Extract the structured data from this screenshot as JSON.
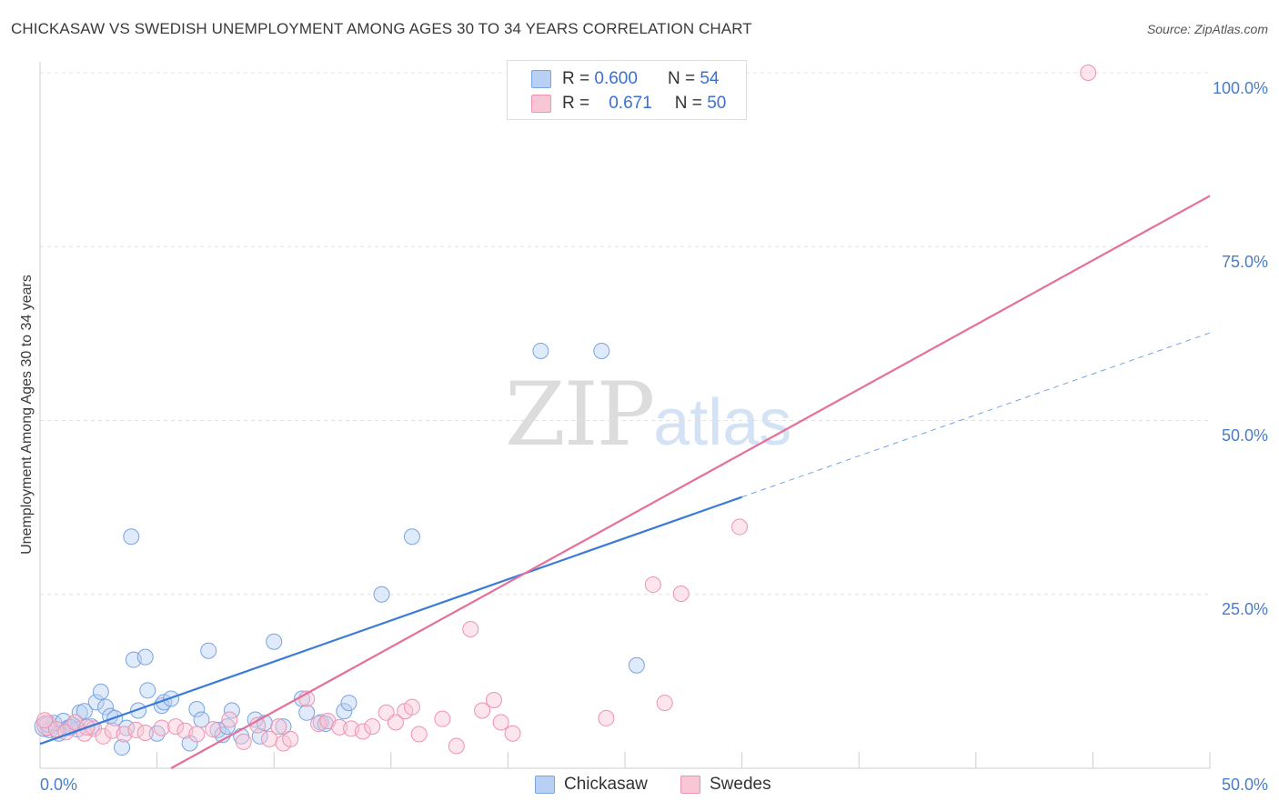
{
  "title": "CHICKASAW VS SWEDISH UNEMPLOYMENT AMONG AGES 30 TO 34 YEARS CORRELATION CHART",
  "source": "Source: ZipAtlas.com",
  "watermark": {
    "zip": "ZIP",
    "atlas": "atlas"
  },
  "legend_top": {
    "r_label": "R =",
    "n_label": "N =",
    "rows": [
      {
        "r": "0.600",
        "n": "54"
      },
      {
        "r": "0.671",
        "n": "50"
      }
    ]
  },
  "chart_data": {
    "type": "scatter",
    "title": "CHICKASAW VS SWEDISH UNEMPLOYMENT AMONG AGES 30 TO 34 YEARS CORRELATION CHART",
    "xlabel": "",
    "ylabel": "Unemployment Among Ages 30 to 34 years",
    "xlim": [
      0,
      50
    ],
    "ylim": [
      0,
      100
    ],
    "x_tick_labels": [
      "0.0%",
      "50.0%"
    ],
    "y_tick_labels": [
      "100.0%",
      "75.0%",
      "50.0%",
      "25.0%"
    ],
    "colors": {
      "Chickasaw": "#3b7bd8",
      "Swedes": "#e56f99",
      "blue_fill": "#b8d0f4",
      "pink_fill": "#f9c6d5"
    },
    "series": [
      {
        "name": "Chickasaw",
        "r": 0.6,
        "n": 54,
        "trend": {
          "x0": 0,
          "y0": 3.5,
          "x1": 30,
          "y1": 39,
          "dashed_to_x": 50,
          "dashed_to_y": 62.6
        },
        "points": [
          [
            0.2,
            6.0
          ],
          [
            0.4,
            5.5
          ],
          [
            0.6,
            6.5
          ],
          [
            0.8,
            5.0
          ],
          [
            1.0,
            6.8
          ],
          [
            1.2,
            5.8
          ],
          [
            1.4,
            6.2
          ],
          [
            1.6,
            5.6
          ],
          [
            1.7,
            8.0
          ],
          [
            1.9,
            8.2
          ],
          [
            2.2,
            6.0
          ],
          [
            2.4,
            9.5
          ],
          [
            2.6,
            11.0
          ],
          [
            2.8,
            8.8
          ],
          [
            3.0,
            7.5
          ],
          [
            3.2,
            7.2
          ],
          [
            3.5,
            3.0
          ],
          [
            3.7,
            5.8
          ],
          [
            3.9,
            33.3
          ],
          [
            4.0,
            15.6
          ],
          [
            4.2,
            8.3
          ],
          [
            4.5,
            16.0
          ],
          [
            4.6,
            11.2
          ],
          [
            5.0,
            5.0
          ],
          [
            5.2,
            9.0
          ],
          [
            5.3,
            9.5
          ],
          [
            5.6,
            10.0
          ],
          [
            6.4,
            3.6
          ],
          [
            6.7,
            8.5
          ],
          [
            6.9,
            7.0
          ],
          [
            7.2,
            16.9
          ],
          [
            7.6,
            5.5
          ],
          [
            7.8,
            4.8
          ],
          [
            8.0,
            6.0
          ],
          [
            8.2,
            8.3
          ],
          [
            8.6,
            4.6
          ],
          [
            9.2,
            7.0
          ],
          [
            9.4,
            4.6
          ],
          [
            9.6,
            6.5
          ],
          [
            10.0,
            18.2
          ],
          [
            10.4,
            6.0
          ],
          [
            11.2,
            10.0
          ],
          [
            11.4,
            8.0
          ],
          [
            12.0,
            6.6
          ],
          [
            12.2,
            6.4
          ],
          [
            13.0,
            8.2
          ],
          [
            13.2,
            9.4
          ],
          [
            14.6,
            25.0
          ],
          [
            15.9,
            33.3
          ],
          [
            21.4,
            60.0
          ],
          [
            24.0,
            60.0
          ],
          [
            25.5,
            14.8
          ],
          [
            0.3,
            6.3
          ],
          [
            1.3,
            5.9
          ]
        ]
      },
      {
        "name": "Swedes",
        "r": 0.671,
        "n": 50,
        "trend": {
          "x0": 5.6,
          "y0": 0,
          "x1": 50,
          "y1": 82.3
        },
        "points": [
          [
            0.3,
            6.2
          ],
          [
            0.7,
            5.6
          ],
          [
            1.1,
            5.2
          ],
          [
            1.5,
            6.6
          ],
          [
            1.9,
            5.0
          ],
          [
            2.3,
            5.7
          ],
          [
            2.7,
            4.6
          ],
          [
            3.1,
            5.4
          ],
          [
            3.6,
            4.9
          ],
          [
            4.1,
            5.5
          ],
          [
            4.5,
            5.1
          ],
          [
            5.2,
            5.8
          ],
          [
            5.8,
            6.0
          ],
          [
            6.2,
            5.4
          ],
          [
            6.7,
            4.9
          ],
          [
            7.4,
            5.6
          ],
          [
            8.1,
            7.0
          ],
          [
            8.7,
            3.8
          ],
          [
            9.3,
            6.2
          ],
          [
            9.8,
            4.2
          ],
          [
            10.4,
            3.6
          ],
          [
            10.7,
            4.2
          ],
          [
            11.4,
            10.0
          ],
          [
            11.9,
            6.4
          ],
          [
            12.3,
            6.8
          ],
          [
            12.8,
            5.9
          ],
          [
            13.3,
            5.7
          ],
          [
            13.8,
            5.3
          ],
          [
            14.2,
            6.0
          ],
          [
            14.8,
            8.0
          ],
          [
            15.2,
            6.6
          ],
          [
            15.6,
            8.2
          ],
          [
            15.9,
            8.8
          ],
          [
            16.2,
            4.9
          ],
          [
            17.2,
            7.1
          ],
          [
            17.8,
            3.2
          ],
          [
            18.4,
            20.0
          ],
          [
            18.9,
            8.3
          ],
          [
            19.4,
            9.8
          ],
          [
            19.7,
            6.6
          ],
          [
            20.2,
            5.0
          ],
          [
            24.2,
            7.2
          ],
          [
            26.2,
            26.4
          ],
          [
            26.7,
            9.4
          ],
          [
            27.4,
            25.1
          ],
          [
            29.9,
            34.7
          ],
          [
            44.8,
            100.0
          ],
          [
            0.2,
            6.9
          ],
          [
            2.0,
            5.9
          ],
          [
            10.2,
            6.0
          ]
        ]
      }
    ]
  },
  "legend_bottom": [
    {
      "label": "Chickasaw"
    },
    {
      "label": "Swedes"
    }
  ]
}
